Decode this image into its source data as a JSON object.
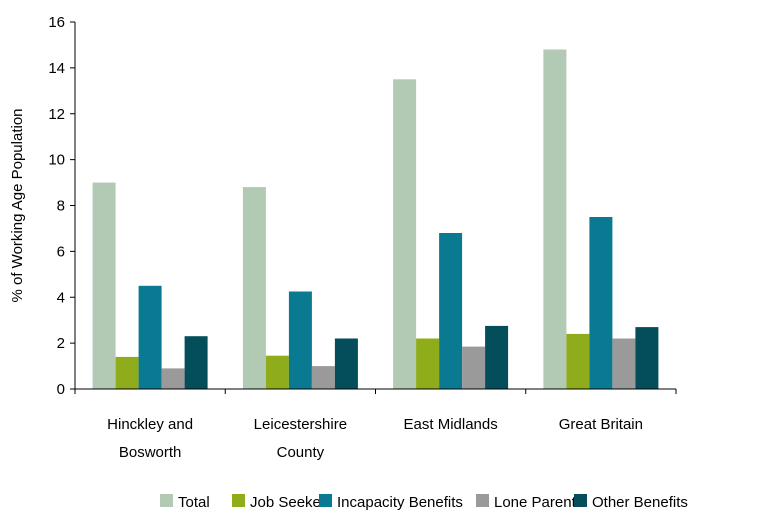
{
  "chart_data": {
    "type": "bar",
    "title": "",
    "xlabel": "",
    "ylabel": "% of Working Age Population",
    "ylim": [
      0,
      16
    ],
    "yticks": [
      0,
      2,
      4,
      6,
      8,
      10,
      12,
      14,
      16
    ],
    "grid": false,
    "legend_position": "bottom-right",
    "categories": [
      [
        "Hinckley and",
        "Bosworth"
      ],
      [
        "Leicestershire",
        "County"
      ],
      [
        "East Midlands"
      ],
      [
        "Great Britain"
      ]
    ],
    "series": [
      {
        "name": "Total",
        "color": "#b2c9b4",
        "values": [
          9.0,
          8.8,
          13.5,
          14.8
        ]
      },
      {
        "name": "Job Seeker",
        "color": "#8fac1a",
        "values": [
          1.4,
          1.45,
          2.2,
          2.4
        ]
      },
      {
        "name": "Incapacity Benefits",
        "color": "#0a7a93",
        "values": [
          4.5,
          4.25,
          6.8,
          7.5
        ]
      },
      {
        "name": "Lone Parent",
        "color": "#9a9a9a",
        "values": [
          0.9,
          1.0,
          1.85,
          2.2
        ]
      },
      {
        "name": "Other Benefits",
        "color": "#044e5b",
        "values": [
          2.3,
          2.2,
          2.75,
          2.7
        ]
      }
    ]
  }
}
